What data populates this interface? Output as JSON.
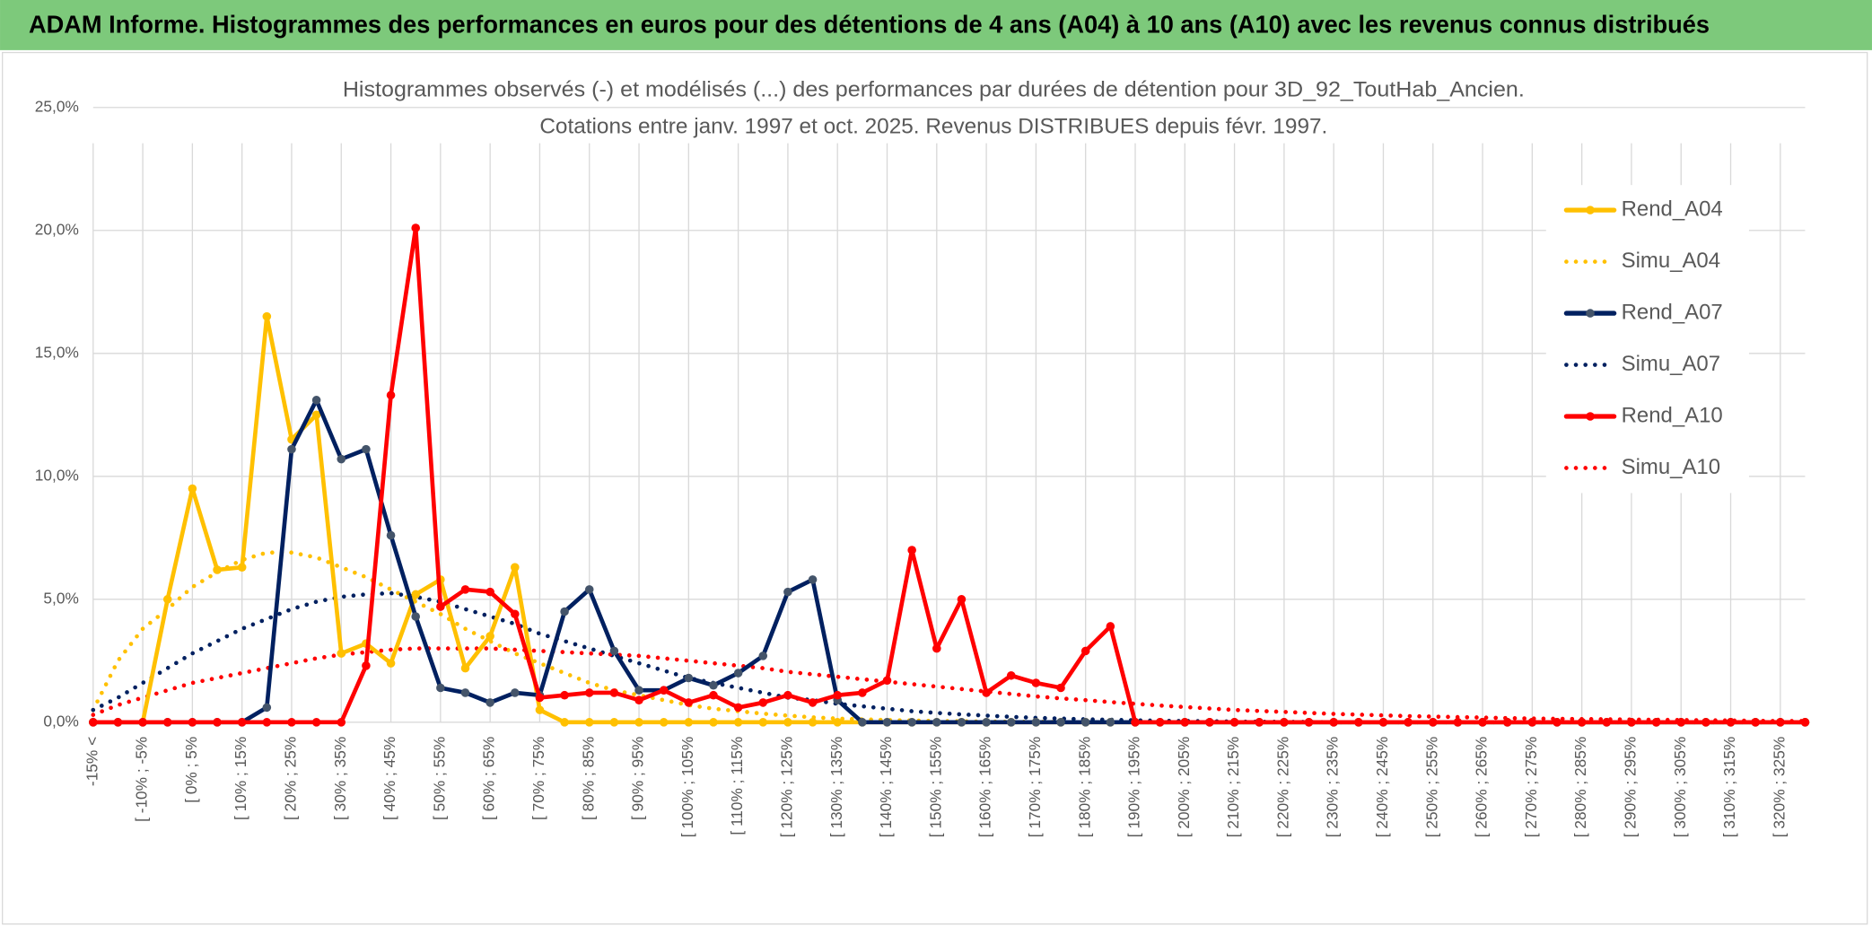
{
  "header": {
    "title": "ADAM Informe. Histogrammes des performances en euros pour des détentions de 4 ans (A04) à 10 ans (A10) avec les revenus connus distribués"
  },
  "chart_data": {
    "type": "line",
    "title": "Histogrammes observés (-) et modélisés (...) des performances par durées de détention pour 3D_92_ToutHab_Ancien.",
    "subtitle": "Cotations entre janv. 1997 et oct. 2025. Revenus DISTRIBUES depuis févr. 1997.",
    "categories": [
      "-15% <",
      null,
      "[ -10% ; -5%",
      null,
      "[ 0% ; 5%",
      null,
      "[ 10% ; 15%",
      null,
      "[ 20% ; 25%",
      null,
      "[ 30% ; 35%",
      null,
      "[ 40% ; 45%",
      null,
      "[ 50% ; 55%",
      null,
      "[ 60% ; 65%",
      null,
      "[ 70% ; 75%",
      null,
      "[ 80% ; 85%",
      null,
      "[ 90% ; 95%",
      null,
      "[ 100% ; 105%",
      null,
      "[ 110% ; 115%",
      null,
      "[ 120% ; 125%",
      null,
      "[ 130% ; 135%",
      null,
      "[ 140% ; 145%",
      null,
      "[ 150% ; 155%",
      null,
      "[ 160% ; 165%",
      null,
      "[ 170% ; 175%",
      null,
      "[ 180% ; 185%",
      null,
      "[ 190% ; 195%",
      null,
      "[ 200% ; 205%",
      null,
      "[ 210% ; 215%",
      null,
      "[ 220% ; 225%",
      null,
      "[ 230% ; 235%",
      null,
      "[ 240% ; 245%",
      null,
      "[ 250% ; 255%",
      null,
      "[ 260% ; 265%",
      null,
      "[ 270% ; 275%",
      null,
      "[ 280% ; 285%",
      null,
      "[ 290% ; 295%",
      null,
      "[ 300% ; 305%",
      null,
      "[ 310% ; 315%",
      null,
      "[ 320% ; 325%",
      null
    ],
    "ylim": [
      0,
      25
    ],
    "yticks": [
      {
        "value": 0,
        "label": "0,0%"
      },
      {
        "value": 5,
        "label": "5,0%"
      },
      {
        "value": 10,
        "label": "10,0%"
      },
      {
        "value": 15,
        "label": "15,0%"
      },
      {
        "value": 20,
        "label": "20,0%"
      },
      {
        "value": 25,
        "label": "25,0%"
      }
    ],
    "grid": true,
    "legend": "right",
    "series": [
      {
        "name": "Rend_A04",
        "color": "#ffc000",
        "line_style": "solid",
        "marker": true,
        "values": [
          0,
          0,
          0,
          5.0,
          9.5,
          6.2,
          6.3,
          16.5,
          11.5,
          12.5,
          2.8,
          3.2,
          2.4,
          5.2,
          5.8,
          2.2,
          3.5,
          6.3,
          0.5,
          0,
          0,
          0,
          0,
          0,
          0,
          0,
          0,
          0,
          0,
          0,
          0,
          0,
          0,
          0,
          0,
          0,
          0,
          0,
          0,
          0,
          0,
          0,
          0,
          0,
          0,
          0,
          0,
          0,
          0,
          0,
          0,
          0,
          0,
          0,
          0,
          0,
          0,
          0,
          0,
          0,
          0,
          0,
          0,
          0,
          0,
          0,
          0,
          0,
          0,
          0
        ]
      },
      {
        "name": "Simu_A04",
        "color": "#ffc000",
        "line_style": "dotted",
        "marker": false,
        "values": [
          0.5,
          2.5,
          3.8,
          4.6,
          5.5,
          6.1,
          6.6,
          6.9,
          6.9,
          6.7,
          6.3,
          5.9,
          5.4,
          4.9,
          4.4,
          3.8,
          3.3,
          2.8,
          2.4,
          2.0,
          1.6,
          1.3,
          1.1,
          0.9,
          0.7,
          0.55,
          0.45,
          0.35,
          0.27,
          0.2,
          0.15,
          0.12,
          0.09,
          0.07,
          0.05,
          0.04,
          0.03,
          0.02,
          0.02,
          0.01,
          0,
          0,
          0,
          0,
          0,
          0,
          0,
          0,
          0,
          0,
          0,
          0,
          0,
          0,
          0,
          0,
          0,
          0,
          0,
          0,
          0,
          0,
          0,
          0,
          0,
          0,
          0,
          0,
          0,
          0
        ]
      },
      {
        "name": "Rend_A07",
        "color": "#002060",
        "marker_color": "#44546a",
        "line_style": "solid",
        "marker": true,
        "values": [
          0,
          0,
          0,
          0,
          0,
          0,
          0,
          0.6,
          11.1,
          13.1,
          10.7,
          11.1,
          7.6,
          4.3,
          1.4,
          1.2,
          0.8,
          1.2,
          1.1,
          4.5,
          5.4,
          2.9,
          1.3,
          1.3,
          1.8,
          1.5,
          2.0,
          2.7,
          5.3,
          5.8,
          0.9,
          0,
          0,
          0,
          0,
          0,
          0,
          0,
          0,
          0,
          0,
          0,
          0,
          0,
          0,
          0,
          0,
          0,
          0,
          0,
          0,
          0,
          0,
          0,
          0,
          0,
          0,
          0,
          0,
          0,
          0,
          0,
          0,
          0,
          0,
          0,
          0,
          0,
          0,
          0
        ]
      },
      {
        "name": "Simu_A07",
        "color": "#002060",
        "line_style": "dotted",
        "marker": false,
        "values": [
          0.5,
          1.0,
          1.6,
          2.2,
          2.8,
          3.3,
          3.8,
          4.2,
          4.6,
          4.9,
          5.1,
          5.2,
          5.25,
          5.1,
          4.9,
          4.6,
          4.3,
          4.0,
          3.6,
          3.3,
          3.0,
          2.7,
          2.4,
          2.1,
          1.8,
          1.6,
          1.4,
          1.2,
          1.0,
          0.9,
          0.75,
          0.65,
          0.55,
          0.45,
          0.38,
          0.32,
          0.27,
          0.22,
          0.18,
          0.15,
          0.12,
          0.1,
          0.08,
          0.06,
          0.05,
          0.04,
          0.03,
          0.02,
          0.02,
          0.01,
          0,
          0,
          0,
          0,
          0,
          0,
          0,
          0,
          0,
          0,
          0,
          0,
          0,
          0,
          0,
          0,
          0,
          0,
          0,
          0
        ]
      },
      {
        "name": "Rend_A10",
        "color": "#ff0000",
        "line_style": "solid",
        "marker": true,
        "values": [
          0,
          0,
          0,
          0,
          0,
          0,
          0,
          0,
          0,
          0,
          0,
          2.3,
          13.3,
          20.1,
          4.7,
          5.4,
          5.3,
          4.4,
          1.0,
          1.1,
          1.2,
          1.2,
          0.9,
          1.3,
          0.8,
          1.1,
          0.6,
          0.8,
          1.1,
          0.8,
          1.1,
          1.2,
          1.7,
          7.0,
          3.0,
          5.0,
          1.2,
          1.9,
          1.6,
          1.4,
          2.9,
          3.9,
          0,
          0,
          0,
          0,
          0,
          0,
          0,
          0,
          0,
          0,
          0,
          0,
          0,
          0,
          0,
          0,
          0,
          0,
          0,
          0,
          0,
          0,
          0,
          0,
          0,
          0,
          0,
          0
        ]
      },
      {
        "name": "Simu_A10",
        "color": "#ff0000",
        "line_style": "dotted",
        "marker": false,
        "values": [
          0.3,
          0.7,
          1.0,
          1.3,
          1.6,
          1.8,
          2.0,
          2.2,
          2.4,
          2.6,
          2.75,
          2.85,
          2.95,
          3.0,
          3.0,
          3.0,
          3.0,
          2.95,
          2.9,
          2.85,
          2.8,
          2.75,
          2.7,
          2.6,
          2.5,
          2.4,
          2.3,
          2.2,
          2.05,
          1.95,
          1.85,
          1.75,
          1.65,
          1.55,
          1.45,
          1.35,
          1.25,
          1.15,
          1.05,
          0.97,
          0.9,
          0.82,
          0.75,
          0.68,
          0.62,
          0.56,
          0.5,
          0.46,
          0.42,
          0.38,
          0.34,
          0.31,
          0.28,
          0.25,
          0.23,
          0.21,
          0.19,
          0.17,
          0.15,
          0.14,
          0.13,
          0.12,
          0.11,
          0.1,
          0.09,
          0.08,
          0.07,
          0.06,
          0.05,
          0.05
        ]
      }
    ]
  }
}
